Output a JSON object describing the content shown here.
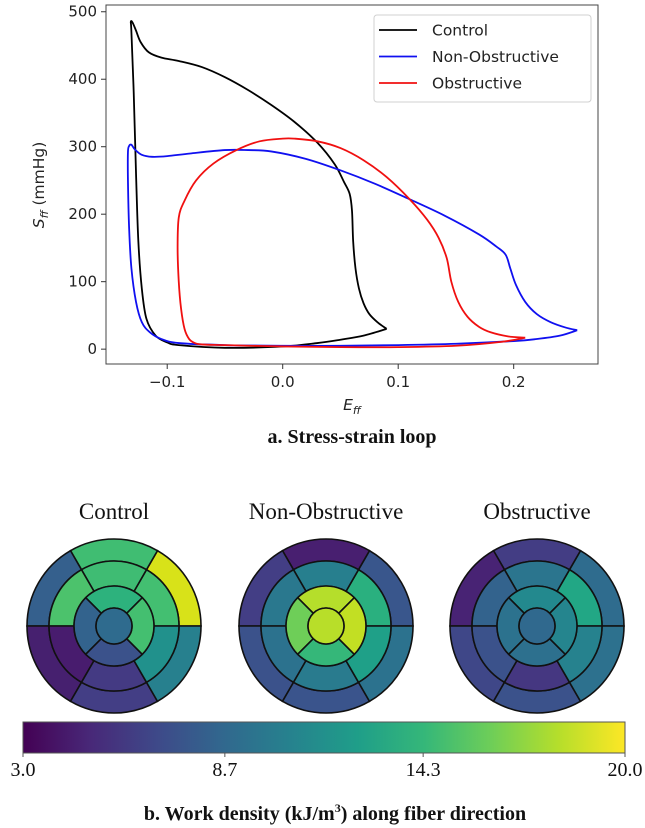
{
  "chart_data": [
    {
      "type": "line",
      "title": "a. Stress-strain loop",
      "xlabel": "E",
      "xlabel_sub": "ff",
      "ylabel": "S",
      "ylabel_sub": "ff",
      "ylabel_unit": " (mmHg)",
      "xlim": [
        -0.153,
        0.273
      ],
      "ylim": [
        -22,
        510
      ],
      "xticks": [
        -0.1,
        0.0,
        0.1,
        0.2
      ],
      "xtick_labels": [
        "−0.1",
        "0.0",
        "0.1",
        "0.2"
      ],
      "yticks": [
        0,
        100,
        200,
        300,
        400,
        500
      ],
      "ytick_labels": [
        "0",
        "100",
        "200",
        "300",
        "400",
        "500"
      ],
      "grid": false,
      "legend_position": "top-right",
      "series": [
        {
          "name": "Control",
          "color": "#000000",
          "x": [
            0.09,
            0.07,
            0.05,
            0.03,
            0.0,
            -0.05,
            -0.09,
            -0.1,
            -0.11,
            -0.118,
            -0.122,
            -0.125,
            -0.127,
            -0.129,
            -0.131,
            -0.1315,
            -0.13,
            -0.127,
            -0.123,
            -0.116,
            -0.105,
            -0.09,
            -0.07,
            -0.05,
            -0.03,
            -0.01,
            0.01,
            0.03,
            0.045,
            0.053,
            0.058,
            0.06,
            0.061,
            0.063,
            0.066,
            0.07,
            0.075,
            0.082,
            0.09
          ],
          "y": [
            30,
            20,
            14,
            9,
            4,
            2,
            6,
            10,
            20,
            45,
            90,
            160,
            260,
            380,
            470,
            485,
            484,
            472,
            455,
            440,
            432,
            427,
            418,
            403,
            384,
            362,
            337,
            306,
            274,
            248,
            230,
            205,
            160,
            120,
            90,
            68,
            52,
            40,
            30
          ]
        },
        {
          "name": "Non-Obstructive",
          "color": "#1010f0",
          "x": [
            0.255,
            0.24,
            0.22,
            0.2,
            0.15,
            0.1,
            0.05,
            0.0,
            -0.05,
            -0.09,
            -0.105,
            -0.115,
            -0.122,
            -0.127,
            -0.131,
            -0.133,
            -0.134,
            -0.134,
            -0.133,
            -0.131,
            -0.128,
            -0.122,
            -0.113,
            -0.1,
            -0.08,
            -0.05,
            -0.03,
            -0.01,
            0.02,
            0.05,
            0.08,
            0.11,
            0.14,
            0.17,
            0.185,
            0.193,
            0.197,
            0.202,
            0.21,
            0.22,
            0.232,
            0.245,
            0.255
          ],
          "y": [
            28,
            20,
            15,
            12,
            8,
            6,
            5,
            5,
            6,
            9,
            15,
            25,
            40,
            70,
            120,
            180,
            250,
            292,
            301,
            303,
            296,
            288,
            285,
            286,
            290,
            295,
            295,
            293,
            282,
            265,
            245,
            222,
            198,
            170,
            152,
            140,
            120,
            95,
            70,
            52,
            40,
            32,
            28
          ]
        },
        {
          "name": "Obstructive",
          "color": "#f01010",
          "x": [
            0.21,
            0.195,
            0.18,
            0.17,
            0.16,
            0.152,
            0.146,
            0.142,
            0.135,
            0.125,
            0.11,
            0.09,
            0.07,
            0.05,
            0.03,
            0.01,
            0.0,
            -0.02,
            -0.04,
            -0.06,
            -0.075,
            -0.085,
            -0.09,
            -0.091,
            -0.09,
            -0.088,
            -0.085,
            -0.081,
            -0.076,
            -0.07,
            -0.05,
            0.0,
            0.05,
            0.1,
            0.15,
            0.19,
            0.21
          ],
          "y": [
            17,
            19,
            25,
            33,
            48,
            70,
            100,
            135,
            165,
            192,
            222,
            255,
            280,
            298,
            308,
            312,
            312,
            308,
            295,
            275,
            250,
            220,
            195,
            150,
            100,
            60,
            30,
            15,
            9,
            7,
            6,
            4,
            3,
            3,
            5,
            11,
            17
          ]
        }
      ]
    },
    {
      "type": "heatmap",
      "subtype": "bullseye",
      "title": "b. Work density (kJ/m³) along fiber direction",
      "title_parts": [
        "b. Work density (kJ/m",
        "3",
        ") along fiber direction"
      ],
      "colorbar": {
        "range": [
          3.0,
          20.0
        ],
        "ticks": [
          3.0,
          8.7,
          14.3,
          20.0
        ],
        "tick_labels": [
          "3.0",
          "8.7",
          "14.3",
          "20.0"
        ],
        "colormap": "viridis",
        "stops": [
          "#440154",
          "#482878",
          "#3e4989",
          "#31688e",
          "#26828e",
          "#1f9e89",
          "#35b779",
          "#6ece58",
          "#b5de2b",
          "#fde725"
        ]
      },
      "segment_order": "outer[UR,top,UL,LL,bottom,LR], middle[UR,top,UL,LL,bottom,LR], inner[top,left,bottom,right], apex",
      "panels": [
        {
          "name": "Control",
          "outer": [
            "#d8e219",
            "#40bd72",
            "#35608d",
            "#46206f",
            "#433e85",
            "#27808e"
          ],
          "middle": [
            "#43bf71",
            "#3fbc73",
            "#4cc26c",
            "#481c6e",
            "#443a83",
            "#21918c"
          ],
          "inner": [
            "#2db27d",
            "#33638d",
            "#3b528b",
            "#44bf70"
          ],
          "apex": "#2f6b8e"
        },
        {
          "name": "Non-Obstructive",
          "outer": [
            "#39568c",
            "#481f70",
            "#433e85",
            "#3b528b",
            "#3a548c",
            "#2c728e"
          ],
          "middle": [
            "#2ab07f",
            "#277f8e",
            "#2a788e",
            "#2c728e",
            "#297b8e",
            "#1fa088"
          ],
          "inner": [
            "#b5de2b",
            "#6ece58",
            "#35b779",
            "#c2df23"
          ],
          "apex": "#b8de29"
        },
        {
          "name": "Obstructive",
          "outer": [
            "#2f6c8e",
            "#433d84",
            "#482374",
            "#3f4788",
            "#3b528b",
            "#2d718e"
          ],
          "middle": [
            "#22a785",
            "#2b758e",
            "#33638d",
            "#3b528b",
            "#453781",
            "#26828e"
          ],
          "inner": [
            "#23898e",
            "#2c728e",
            "#2d708e",
            "#25858e"
          ],
          "apex": "#30698e"
        }
      ]
    }
  ]
}
